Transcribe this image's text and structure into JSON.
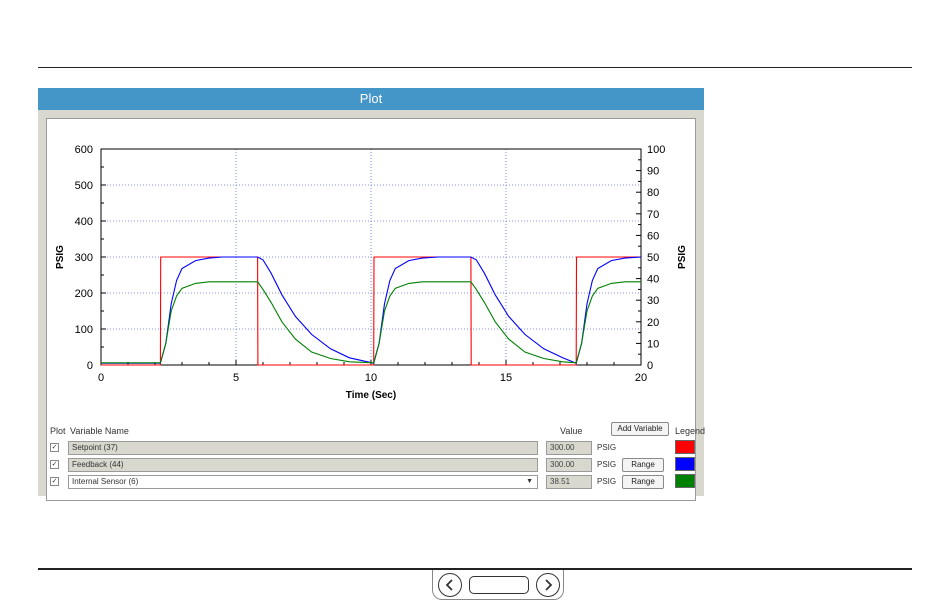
{
  "plot": {
    "title": "Plot"
  },
  "chart_data": {
    "type": "line",
    "xlabel": "Time (Sec)",
    "ylabel": "PSIG",
    "y2label": "PSIG",
    "xlim": [
      0,
      20
    ],
    "ylim": [
      0,
      600
    ],
    "y2lim": [
      0,
      100
    ],
    "x_ticks": [
      0,
      5,
      10,
      15,
      20
    ],
    "y_ticks": [
      0,
      100,
      200,
      300,
      400,
      500,
      600
    ],
    "y2_ticks": [
      0,
      10,
      20,
      30,
      40,
      50,
      60,
      70,
      80,
      90,
      100
    ],
    "grid": true,
    "series": [
      {
        "name": "Setpoint (37)",
        "color": "#ff0000",
        "x": [
          0,
          2.2,
          2.21,
          5.8,
          5.81,
          10.1,
          10.11,
          13.7,
          13.71,
          17.6,
          17.61,
          20
        ],
        "y": [
          0,
          0,
          300,
          300,
          0,
          0,
          300,
          300,
          0,
          0,
          300,
          300
        ]
      },
      {
        "name": "Feedback (44)",
        "color": "#0000ff",
        "x": [
          0,
          2.2,
          2.4,
          2.6,
          2.8,
          3.0,
          3.5,
          4.0,
          4.5,
          5.8,
          6.0,
          6.3,
          6.7,
          7.2,
          7.8,
          8.5,
          9.2,
          10.1,
          10.3,
          10.5,
          10.7,
          10.9,
          11.4,
          11.9,
          12.5,
          13.7,
          13.9,
          14.2,
          14.6,
          15.1,
          15.7,
          16.4,
          17.1,
          17.6,
          17.8,
          18.0,
          18.2,
          18.4,
          18.9,
          19.4,
          20
        ],
        "y": [
          5,
          5,
          60,
          170,
          235,
          268,
          290,
          297,
          300,
          300,
          292,
          255,
          195,
          135,
          85,
          45,
          20,
          5,
          60,
          170,
          235,
          268,
          290,
          297,
          300,
          300,
          292,
          255,
          195,
          135,
          85,
          45,
          20,
          5,
          60,
          170,
          235,
          268,
          290,
          297,
          300
        ]
      },
      {
        "name": "Internal Sensor (6)",
        "color": "#008000",
        "x": [
          0,
          2.2,
          2.4,
          2.6,
          2.8,
          3.0,
          3.5,
          4.0,
          5.8,
          6.0,
          6.3,
          6.7,
          7.2,
          7.8,
          8.5,
          9.2,
          10.1,
          10.3,
          10.5,
          10.7,
          10.9,
          11.4,
          11.9,
          13.7,
          13.9,
          14.2,
          14.6,
          15.1,
          15.7,
          16.4,
          17.1,
          17.6,
          17.8,
          18.0,
          18.2,
          18.4,
          18.9,
          19.4,
          20
        ],
        "y": [
          1,
          1,
          10,
          25,
          32,
          35.5,
          37.8,
          38.5,
          38.5,
          35,
          29,
          20,
          12,
          6,
          3,
          1.5,
          1,
          10,
          25,
          32,
          35.5,
          37.8,
          38.5,
          38.5,
          35,
          29,
          20,
          12,
          6,
          3,
          1.5,
          1,
          10,
          25,
          32,
          35.5,
          37.8,
          38.5,
          38.5
        ],
        "axis": "right"
      }
    ]
  },
  "variables": {
    "headers": {
      "plot": "Plot",
      "name": "Variable Name",
      "value": "Value",
      "legend": "Legend"
    },
    "add_button": "Add Variable",
    "rows": [
      {
        "checked": "✓",
        "name": "Setpoint (37)",
        "value": "300.00",
        "unit": "PSIG",
        "range": "",
        "color": "#ff0000"
      },
      {
        "checked": "✓",
        "name": "Feedback (44)",
        "value": "300.00",
        "unit": "PSIG",
        "range": "Range",
        "color": "#0000ff"
      },
      {
        "checked": "✓",
        "name": "Internal Sensor (6)",
        "value": "38.51",
        "unit": "PSIG",
        "range": "Range",
        "color": "#008000"
      }
    ]
  },
  "nav": {
    "prev_icon": "chevron-left-icon",
    "next_icon": "chevron-right-icon"
  }
}
